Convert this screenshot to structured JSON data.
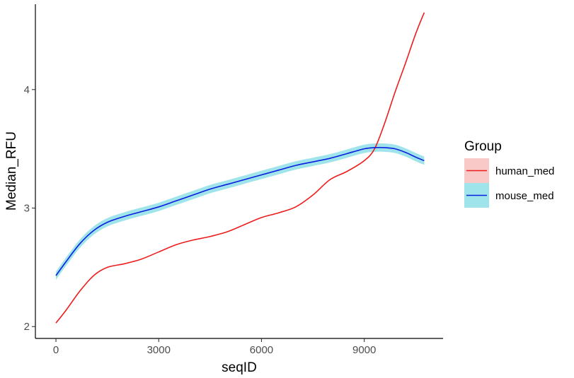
{
  "chart_data": {
    "type": "line",
    "xlabel": "seqID",
    "ylabel": "Median_RFU",
    "xlim": [
      -600,
      11300
    ],
    "ylim": [
      1.9,
      4.72
    ],
    "x_ticks": [
      0,
      3000,
      6000,
      9000
    ],
    "x_tick_labels": [
      "0",
      "3000",
      "6000",
      "9000"
    ],
    "y_ticks": [
      2,
      3,
      4
    ],
    "y_tick_labels": [
      "2",
      "3",
      "4"
    ],
    "grid": false,
    "legend": {
      "title": "Group",
      "position": "right",
      "entries": [
        "human_med",
        "mouse_med"
      ]
    },
    "series": [
      {
        "name": "human_med",
        "color": "#ee1c1c",
        "fill": "#f8c9c6",
        "band_halfwidth": 0,
        "x": [
          0,
          300,
          700,
          1100,
          1500,
          2000,
          2500,
          3000,
          3500,
          4000,
          4500,
          5000,
          5500,
          6000,
          6500,
          7000,
          7500,
          8000,
          8500,
          9000,
          9300,
          9600,
          9900,
          10200,
          10500,
          10750
        ],
        "y": [
          2.03,
          2.14,
          2.3,
          2.43,
          2.5,
          2.53,
          2.57,
          2.63,
          2.69,
          2.73,
          2.76,
          2.8,
          2.86,
          2.92,
          2.96,
          3.01,
          3.11,
          3.24,
          3.31,
          3.4,
          3.5,
          3.72,
          3.98,
          4.22,
          4.47,
          4.65
        ]
      },
      {
        "name": "mouse_med",
        "color": "#0a1ee0",
        "fill": "#9ee4ea",
        "band_halfwidth": 0.035,
        "x": [
          0,
          300,
          700,
          1100,
          1500,
          2000,
          2500,
          3000,
          3500,
          4000,
          4500,
          5000,
          5500,
          6000,
          6500,
          7000,
          7500,
          8000,
          8500,
          9000,
          9300,
          9600,
          9900,
          10200,
          10500,
          10750
        ],
        "y": [
          2.43,
          2.55,
          2.7,
          2.81,
          2.88,
          2.93,
          2.97,
          3.01,
          3.06,
          3.11,
          3.16,
          3.2,
          3.24,
          3.28,
          3.32,
          3.36,
          3.39,
          3.42,
          3.46,
          3.5,
          3.51,
          3.51,
          3.5,
          3.47,
          3.43,
          3.4
        ]
      }
    ]
  }
}
